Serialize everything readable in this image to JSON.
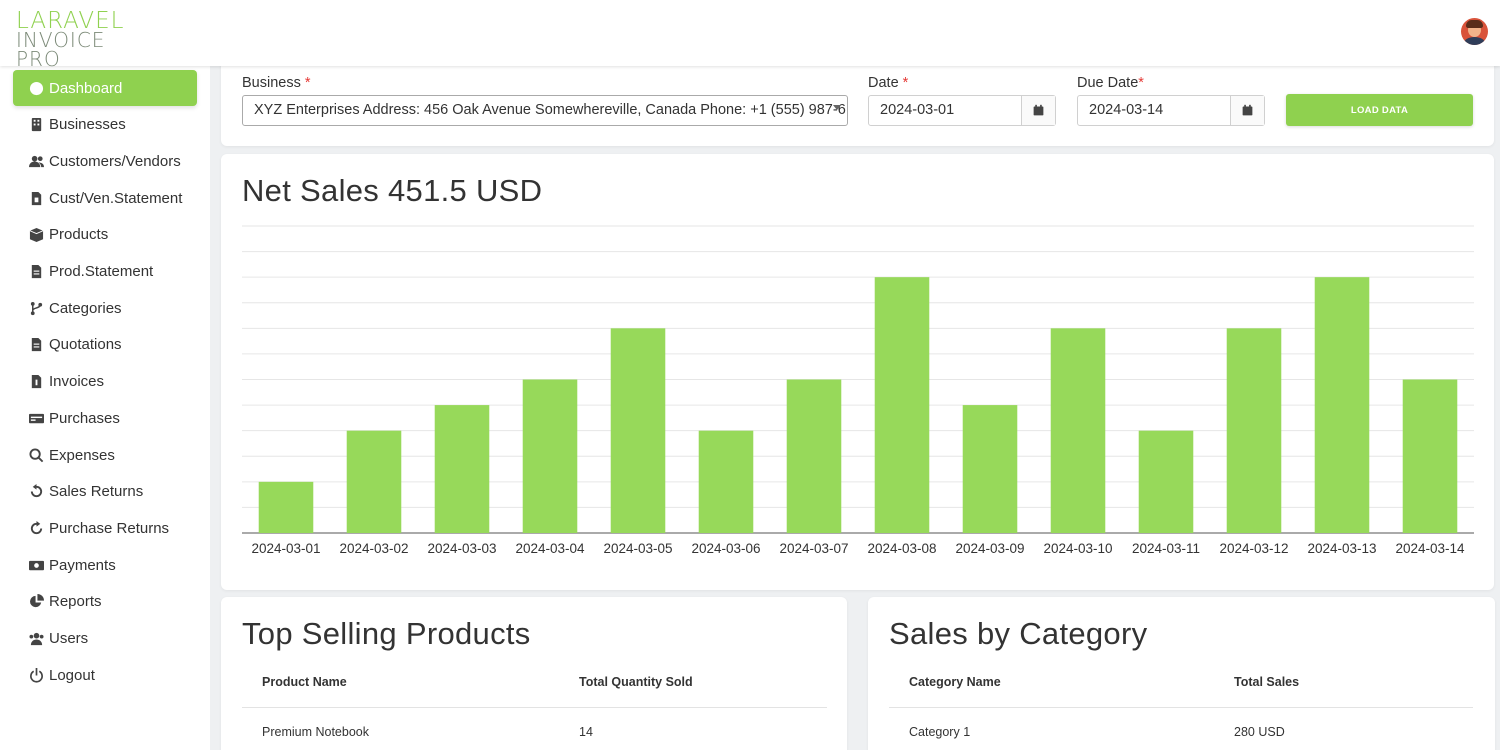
{
  "brand": {
    "line1": "LARAVEL",
    "line2": "INVOICE PRO"
  },
  "sidebar": {
    "items": [
      {
        "label": "Dashboard",
        "icon": "dashboard-icon",
        "active": true
      },
      {
        "label": "Businesses",
        "icon": "building-icon"
      },
      {
        "label": "Customers/Vendors",
        "icon": "user-group-icon"
      },
      {
        "label": "Cust/Ven.Statement",
        "icon": "file-icon"
      },
      {
        "label": "Products",
        "icon": "box-icon"
      },
      {
        "label": "Prod.Statement",
        "icon": "document-icon"
      },
      {
        "label": "Categories",
        "icon": "branch-icon"
      },
      {
        "label": "Quotations",
        "icon": "document-icon"
      },
      {
        "label": "Invoices",
        "icon": "invoice-icon"
      },
      {
        "label": "Purchases",
        "icon": "card-icon"
      },
      {
        "label": "Expenses",
        "icon": "search-money-icon"
      },
      {
        "label": "Sales Returns",
        "icon": "undo-icon"
      },
      {
        "label": "Purchase Returns",
        "icon": "redo-icon"
      },
      {
        "label": "Payments",
        "icon": "money-icon"
      },
      {
        "label": "Reports",
        "icon": "pie-chart-icon"
      },
      {
        "label": "Users",
        "icon": "users-icon"
      },
      {
        "label": "Logout",
        "icon": "power-icon"
      }
    ]
  },
  "filters": {
    "business_label": "Business",
    "business_value": "XYZ Enterprises Address: 456 Oak Avenue Somewhereville, Canada Phone: +1 (555) 987-6...",
    "date_label": "Date",
    "date_value": "2024-03-01",
    "due_date_label": "Due Date",
    "due_date_value": "2024-03-14",
    "required_mark": "*",
    "load_button": "LOAD DATA"
  },
  "net_sales": {
    "title": "Net Sales 451.5 USD"
  },
  "chart_data": {
    "type": "bar",
    "title": "Net Sales 451.5 USD",
    "categories": [
      "2024-03-01",
      "2024-03-02",
      "2024-03-03",
      "2024-03-04",
      "2024-03-05",
      "2024-03-06",
      "2024-03-07",
      "2024-03-08",
      "2024-03-09",
      "2024-03-10",
      "2024-03-11",
      "2024-03-12",
      "2024-03-13",
      "2024-03-14"
    ],
    "values": [
      2,
      4,
      5,
      6,
      8,
      4,
      6,
      10,
      5,
      8,
      4,
      8,
      10,
      6
    ],
    "ylim": [
      0,
      12
    ],
    "grid": true,
    "xlabel": "",
    "ylabel": "",
    "color": "#97d95a"
  },
  "top_products": {
    "title": "Top Selling Products",
    "headers": [
      "Product Name",
      "Total Quantity Sold"
    ],
    "rows": [
      [
        "Premium Notebook",
        "14"
      ]
    ]
  },
  "sales_by_category": {
    "title": "Sales by Category",
    "headers": [
      "Category Name",
      "Total Sales"
    ],
    "rows": [
      [
        "Category 1",
        "280 USD"
      ]
    ]
  },
  "colors": {
    "accent": "#8fd14f",
    "bar": "#97d95a",
    "required": "#e53935"
  }
}
